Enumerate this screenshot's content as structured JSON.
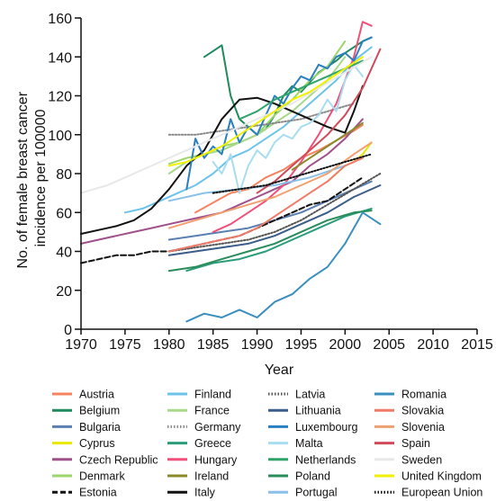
{
  "chart_data": {
    "type": "line",
    "title": "",
    "xlabel": "Year",
    "ylabel": "No. of female breast cancer incidence per 100000",
    "xlim": [
      1970,
      2015
    ],
    "ylim": [
      0,
      160
    ],
    "xticks": [
      1970,
      1975,
      1980,
      1985,
      1990,
      1995,
      2000,
      2005,
      2010,
      2015
    ],
    "yticks": [
      0,
      20,
      40,
      60,
      80,
      100,
      120,
      140,
      160
    ],
    "grid": false,
    "legend_position": "bottom",
    "series": [
      {
        "name": "Austria",
        "color": "#f4845f",
        "dash": "solid",
        "x": [
          1983,
          1985,
          1987,
          1989,
          1991,
          1993,
          1995,
          1997,
          1999,
          2001,
          2002
        ],
        "y": [
          60,
          65,
          70,
          72,
          78,
          82,
          88,
          92,
          97,
          102,
          105
        ]
      },
      {
        "name": "Belgium",
        "color": "#1f8a5e",
        "dash": "solid",
        "x": [
          1984,
          1985,
          1986,
          1987,
          1988,
          1989,
          1990,
          1991,
          1992,
          1993,
          1994,
          1995,
          1996,
          1997,
          1998,
          1999,
          2000,
          2001,
          2002,
          2003
        ],
        "y": [
          140,
          143,
          146,
          120,
          108,
          104,
          100,
          103,
          110,
          120,
          125,
          122,
          127,
          132,
          135,
          138,
          142,
          145,
          148,
          150
        ]
      },
      {
        "name": "Bulgaria",
        "color": "#5a7fb0",
        "dash": "solid",
        "x": [
          1980,
          1983,
          1986,
          1989,
          1992,
          1995,
          1998,
          2001,
          2003
        ],
        "y": [
          46,
          48,
          50,
          52,
          56,
          60,
          66,
          72,
          76
        ]
      },
      {
        "name": "Cyprus",
        "color": "#e8e800",
        "dash": "solid",
        "x": [
          1998,
          1999,
          2000,
          2001,
          2002,
          2003
        ],
        "y": [
          76,
          80,
          84,
          86,
          90,
          96
        ]
      },
      {
        "name": "Czech Republic",
        "color": "#a0508a",
        "dash": "solid",
        "x": [
          1970,
          1972,
          1974,
          1976,
          1978,
          1980,
          1982,
          1984,
          1986,
          1988,
          1990,
          1992,
          1994,
          1996,
          1998,
          2000,
          2002
        ],
        "y": [
          44,
          46,
          48,
          50,
          52,
          54,
          56,
          58,
          60,
          64,
          68,
          72,
          76,
          84,
          90,
          98,
          108
        ]
      },
      {
        "name": "Denmark",
        "color": "#9bd66c",
        "dash": "solid",
        "x": [
          1980,
          1982,
          1984,
          1986,
          1988,
          1990,
          1992,
          1994,
          1996,
          1998,
          2000
        ],
        "y": [
          85,
          88,
          90,
          94,
          96,
          100,
          110,
          118,
          128,
          135,
          148
        ]
      },
      {
        "name": "Estonia",
        "color": "#111111",
        "dash": "dashed",
        "x": [
          1970,
          1972,
          1974,
          1976,
          1978,
          1980,
          1982,
          1984,
          1986,
          1988,
          1990,
          1992,
          1994,
          1996,
          1998,
          2000,
          2002
        ],
        "y": [
          34,
          36,
          38,
          38,
          40,
          40,
          42,
          44,
          46,
          48,
          52,
          56,
          60,
          64,
          66,
          72,
          78
        ]
      },
      {
        "name": "Finland",
        "color": "#6ec3e8",
        "dash": "solid",
        "x": [
          1975,
          1977,
          1979,
          1981,
          1983,
          1985,
          1987,
          1989,
          1991,
          1993,
          1995,
          1997,
          1999,
          2001,
          2003
        ],
        "y": [
          60,
          62,
          66,
          70,
          74,
          80,
          88,
          92,
          98,
          104,
          112,
          120,
          128,
          138,
          145
        ]
      },
      {
        "name": "France",
        "color": "#a8d88a",
        "dash": "solid",
        "x": [
          1980,
          1982,
          1984,
          1986,
          1988,
          1990,
          1992,
          1994,
          1996,
          1998,
          2000
        ],
        "y": [
          80,
          86,
          90,
          92,
          96,
          100,
          106,
          112,
          120,
          128,
          140
        ]
      },
      {
        "name": "Germany",
        "color": "#888888",
        "dash": "dotted",
        "x": [
          1980,
          1983,
          1986,
          1989,
          1992,
          1995,
          1998,
          2001
        ],
        "y": [
          100,
          100,
          102,
          104,
          106,
          108,
          112,
          116
        ]
      },
      {
        "name": "Greece",
        "color": "#2a9c7a",
        "dash": "solid",
        "x": [
          1982,
          1985,
          1988,
          1991,
          1994,
          1997,
          2000,
          2003
        ],
        "y": [
          30,
          34,
          36,
          40,
          46,
          52,
          58,
          62
        ]
      },
      {
        "name": "Hungary",
        "color": "#f0507a",
        "dash": "solid",
        "x": [
          1985,
          1987,
          1989,
          1991,
          1993,
          1995,
          1997,
          1999,
          2001,
          2002,
          2003
        ],
        "y": [
          50,
          54,
          60,
          66,
          74,
          86,
          100,
          116,
          140,
          158,
          156
        ]
      },
      {
        "name": "Ireland",
        "color": "#8a8a2a",
        "dash": "solid",
        "x": [
          1994,
          1996,
          1998,
          2000,
          2002
        ],
        "y": [
          82,
          88,
          94,
          100,
          106
        ]
      },
      {
        "name": "Italy",
        "color": "#111111",
        "dash": "solid",
        "x": [
          1970,
          1972,
          1974,
          1976,
          1978,
          1980,
          1982,
          1984,
          1986,
          1988,
          1990,
          1992,
          1994,
          1996,
          1998,
          2000,
          2001,
          2002
        ],
        "y": [
          49,
          51,
          53,
          56,
          62,
          72,
          84,
          92,
          108,
          118,
          119,
          116,
          112,
          108,
          104,
          101,
          112,
          125
        ]
      },
      {
        "name": "Latvia",
        "color": "#555555",
        "dash": "dotted",
        "x": [
          1980,
          1983,
          1986,
          1989,
          1992,
          1995,
          1998,
          2001,
          2004
        ],
        "y": [
          40,
          42,
          44,
          46,
          50,
          56,
          64,
          72,
          80
        ]
      },
      {
        "name": "Lithuania",
        "color": "#3b5d8a",
        "dash": "solid",
        "x": [
          1980,
          1983,
          1986,
          1989,
          1992,
          1995,
          1998,
          2001,
          2004
        ],
        "y": [
          38,
          40,
          42,
          44,
          48,
          54,
          60,
          68,
          74
        ]
      },
      {
        "name": "Luxembourg",
        "color": "#2a7fc0",
        "dash": "solid",
        "x": [
          1982,
          1983,
          1984,
          1985,
          1986,
          1987,
          1988,
          1989,
          1990,
          1991,
          1992,
          1993,
          1994,
          1995,
          1996,
          1997,
          1998,
          1999,
          2000,
          2001,
          2002,
          2003
        ],
        "y": [
          72,
          98,
          88,
          94,
          90,
          108,
          96,
          104,
          100,
          110,
          120,
          116,
          124,
          130,
          128,
          136,
          134,
          140,
          142,
          138,
          148,
          150
        ]
      },
      {
        "name": "Malta",
        "color": "#a8ddf0",
        "dash": "solid",
        "x": [
          1985,
          1986,
          1987,
          1988,
          1989,
          1990,
          1991,
          1992,
          1993,
          1994,
          1995,
          1996,
          1997,
          1998,
          1999,
          2000,
          2001,
          2002
        ],
        "y": [
          86,
          80,
          90,
          70,
          84,
          92,
          88,
          96,
          100,
          98,
          104,
          106,
          110,
          118,
          112,
          128,
          136,
          130
        ]
      },
      {
        "name": "Netherlands",
        "color": "#2fa46a",
        "dash": "solid",
        "x": [
          1988,
          1990,
          1992,
          1994,
          1996,
          1998,
          2000,
          2002
        ],
        "y": [
          108,
          112,
          118,
          122,
          126,
          130,
          134,
          138
        ]
      },
      {
        "name": "Poland",
        "color": "#2a8c5a",
        "dash": "solid",
        "x": [
          1980,
          1983,
          1986,
          1989,
          1992,
          1995,
          1998,
          2001,
          2003
        ],
        "y": [
          30,
          32,
          36,
          40,
          44,
          50,
          56,
          60,
          61
        ]
      },
      {
        "name": "Portugal",
        "color": "#8ac0e8",
        "dash": "solid",
        "x": [
          1980,
          1984,
          1988,
          1992,
          1996,
          2000
        ],
        "y": [
          66,
          70,
          72,
          74,
          78,
          84
        ]
      },
      {
        "name": "Romania",
        "color": "#3a8fbf",
        "dash": "solid",
        "x": [
          1982,
          1984,
          1986,
          1988,
          1990,
          1992,
          1994,
          1996,
          1998,
          2000,
          2002,
          2004
        ],
        "y": [
          4,
          8,
          6,
          10,
          6,
          14,
          18,
          26,
          32,
          44,
          60,
          54
        ]
      },
      {
        "name": "Slovakia",
        "color": "#f07a6a",
        "dash": "solid",
        "x": [
          1980,
          1982,
          1984,
          1986,
          1988,
          1990,
          1992,
          1994,
          1996,
          1998,
          2000,
          2002
        ],
        "y": [
          40,
          42,
          44,
          46,
          48,
          52,
          58,
          64,
          70,
          76,
          84,
          88
        ]
      },
      {
        "name": "Slovenia",
        "color": "#f0a070",
        "dash": "solid",
        "x": [
          1980,
          1983,
          1986,
          1989,
          1992,
          1995,
          1998,
          2001,
          2003
        ],
        "y": [
          52,
          56,
          60,
          64,
          68,
          74,
          80,
          90,
          96
        ]
      },
      {
        "name": "Spain",
        "color": "#d04a5a",
        "dash": "solid",
        "x": [
          1990,
          1992,
          1994,
          1996,
          1998,
          2000,
          2002,
          2004
        ],
        "y": [
          70,
          76,
          84,
          92,
          100,
          110,
          124,
          144
        ]
      },
      {
        "name": "Sweden",
        "color": "#e8e8e8",
        "dash": "solid",
        "x": [
          1970,
          1973,
          1976,
          1979,
          1982,
          1985,
          1988,
          1991,
          1994,
          1997,
          2000,
          2003
        ],
        "y": [
          70,
          74,
          80,
          86,
          92,
          98,
          104,
          110,
          116,
          124,
          132,
          140
        ]
      },
      {
        "name": "United Kingdom",
        "color": "#f0f000",
        "dash": "solid",
        "x": [
          1980,
          1982,
          1984,
          1986,
          1988,
          1990,
          1992,
          1994,
          1996,
          1998,
          2000,
          2002
        ],
        "y": [
          84,
          86,
          90,
          94,
          100,
          106,
          112,
          118,
          122,
          128,
          134,
          140
        ]
      },
      {
        "name": "European Union",
        "color": "#111111",
        "dash": "dotted",
        "x": [
          1985,
          1988,
          1991,
          1994,
          1997,
          2000,
          2003
        ],
        "y": [
          70,
          72,
          74,
          78,
          82,
          86,
          90
        ]
      }
    ]
  }
}
